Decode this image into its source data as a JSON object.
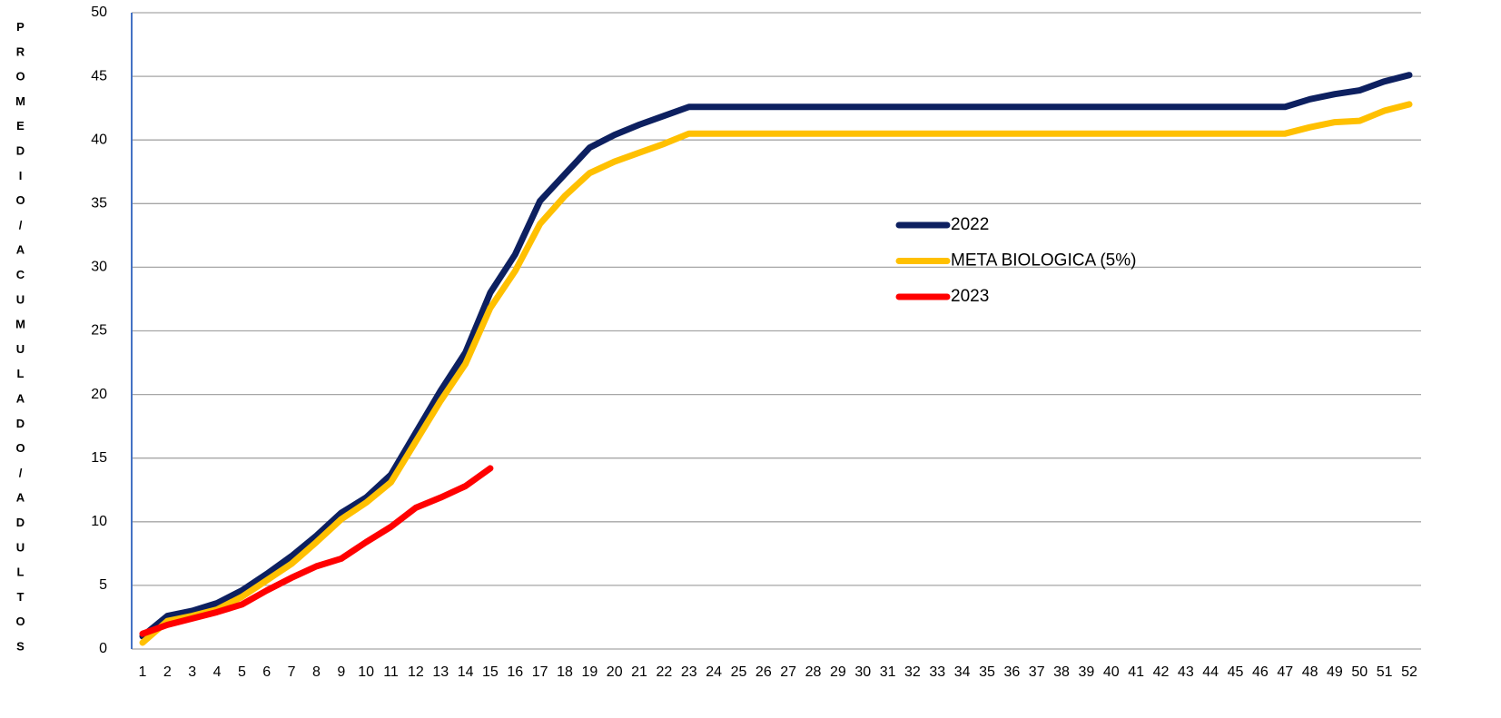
{
  "chart_data": {
    "type": "line",
    "y_label": "PROMEDIO/ACUMULADO/ADULTOS",
    "categories": [
      "1",
      "2",
      "3",
      "4",
      "5",
      "6",
      "7",
      "8",
      "9",
      "10",
      "11",
      "12",
      "13",
      "14",
      "15",
      "16",
      "17",
      "18",
      "19",
      "20",
      "21",
      "22",
      "23",
      "24",
      "25",
      "26",
      "27",
      "28",
      "29",
      "30",
      "31",
      "32",
      "33",
      "34",
      "35",
      "36",
      "37",
      "38",
      "39",
      "40",
      "41",
      "42",
      "43",
      "44",
      "45",
      "46",
      "47",
      "48",
      "49",
      "50",
      "51",
      "52"
    ],
    "series": [
      {
        "name": "2022",
        "color": "#0d2060",
        "values": [
          1.0,
          2.6,
          3.0,
          3.6,
          4.6,
          5.9,
          7.3,
          8.9,
          10.7,
          11.9,
          13.7,
          17.0,
          20.3,
          23.3,
          28.0,
          31.0,
          35.2,
          37.3,
          39.4,
          40.4,
          41.2,
          41.9,
          42.6,
          42.6,
          42.6,
          42.6,
          42.6,
          42.6,
          42.6,
          42.6,
          42.6,
          42.6,
          42.6,
          42.6,
          42.6,
          42.6,
          42.6,
          42.6,
          42.6,
          42.6,
          42.6,
          42.6,
          42.6,
          42.6,
          42.6,
          42.6,
          42.6,
          43.2,
          43.6,
          43.9,
          44.6,
          45.1
        ]
      },
      {
        "name": "META BIOLOGICA (5%)",
        "color": "#ffc000",
        "values": [
          0.5,
          2.2,
          2.6,
          3.1,
          4.1,
          5.4,
          6.7,
          8.4,
          10.2,
          11.5,
          13.1,
          16.3,
          19.5,
          22.4,
          26.8,
          29.7,
          33.4,
          35.6,
          37.4,
          38.3,
          39.0,
          39.7,
          40.5,
          40.5,
          40.5,
          40.5,
          40.5,
          40.5,
          40.5,
          40.5,
          40.5,
          40.5,
          40.5,
          40.5,
          40.5,
          40.5,
          40.5,
          40.5,
          40.5,
          40.5,
          40.5,
          40.5,
          40.5,
          40.5,
          40.5,
          40.5,
          40.5,
          41.0,
          41.4,
          41.5,
          42.3,
          42.8
        ]
      },
      {
        "name": "2023",
        "color": "#ff0000",
        "values": [
          1.2,
          1.9,
          2.4,
          2.9,
          3.5,
          4.6,
          5.6,
          6.5,
          7.1,
          8.4,
          9.6,
          11.1,
          11.9,
          12.8,
          14.2,
          null,
          null,
          null,
          null,
          null,
          null,
          null,
          null,
          null,
          null,
          null,
          null,
          null,
          null,
          null,
          null,
          null,
          null,
          null,
          null,
          null,
          null,
          null,
          null,
          null,
          null,
          null,
          null,
          null,
          null,
          null,
          null,
          null,
          null,
          null,
          null,
          null
        ]
      }
    ],
    "ylim": [
      0,
      50
    ],
    "yticks": [
      0,
      5,
      10,
      15,
      20,
      25,
      30,
      35,
      40,
      45,
      50
    ],
    "grid": true
  }
}
